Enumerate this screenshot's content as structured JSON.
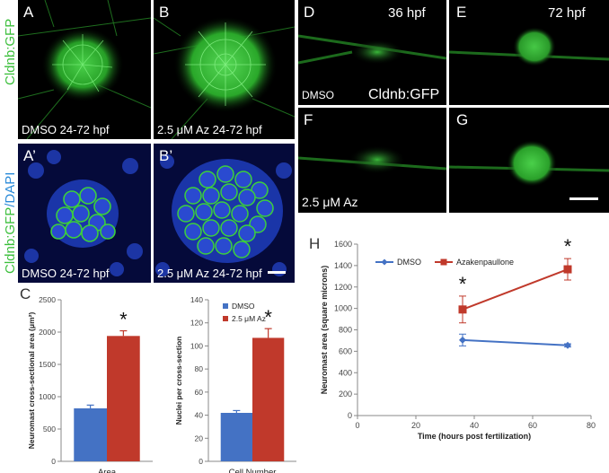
{
  "colors": {
    "gfp_green": "#3cbf3c",
    "dapi_blue": "#2a45c8",
    "dmso_blue": "#4472c4",
    "az_red": "#c0392b",
    "axis_grey": "#888888"
  },
  "micrographs": {
    "A": {
      "letter": "A",
      "caption": "DMSO 24-72 hpf"
    },
    "B": {
      "letter": "B",
      "caption": "2.5 μM Az 24-72 hpf"
    },
    "A2": {
      "letter": "A’",
      "caption": "DMSO 24-72 hpf"
    },
    "B2": {
      "letter": "B’",
      "caption": "2.5 μM Az 24-72 hpf"
    },
    "D": {
      "letter": "D",
      "time": "36  hpf",
      "caption": "DMSO",
      "marker": "Cldnb:GFP"
    },
    "E": {
      "letter": "E",
      "time": "72 hpf"
    },
    "F": {
      "letter": "F",
      "caption": "2.5 μM Az"
    },
    "G": {
      "letter": "G"
    },
    "side_top": "Cldnb:GFP",
    "side_bottom_green": "Cldnb:GFP",
    "side_bottom_blue": "/DAPI"
  },
  "chart_data": [
    {
      "panel": "C",
      "type": "bar",
      "categories": [
        "Area"
      ],
      "series": [
        {
          "name": "DMSO",
          "values": [
            820
          ],
          "error": [
            50
          ]
        },
        {
          "name": "2.5 μM Az",
          "values": [
            1940
          ],
          "error": [
            80
          ]
        }
      ],
      "xlabel": "Area",
      "ylabel": "Neuromast cross-sectional area (μm²)",
      "ylim": [
        0,
        2500
      ],
      "yticks": [
        0,
        500,
        1000,
        1500,
        2000,
        2500
      ],
      "annotation": "*"
    },
    {
      "panel": "C2",
      "type": "bar",
      "categories": [
        "Cell Number"
      ],
      "series": [
        {
          "name": "DMSO",
          "values": [
            42
          ],
          "error": [
            2
          ]
        },
        {
          "name": "2.5 μM Az",
          "values": [
            107
          ],
          "error": [
            8
          ]
        }
      ],
      "xlabel": "Cell Number",
      "ylabel": "Nuclei per cross-section",
      "ylim": [
        0,
        140
      ],
      "yticks": [
        0,
        20,
        40,
        60,
        80,
        100,
        120,
        140
      ],
      "legend": [
        "DMSO",
        "2.5 μM Az"
      ],
      "legend_position": "top-right",
      "annotation": "*"
    },
    {
      "panel": "H",
      "type": "line",
      "series": [
        {
          "name": "DMSO",
          "x": [
            36,
            72
          ],
          "y": [
            705,
            655
          ],
          "error": [
            55,
            15
          ]
        },
        {
          "name": "Azakenpaullone",
          "x": [
            36,
            72
          ],
          "y": [
            990,
            1365
          ],
          "error": [
            125,
            100
          ]
        }
      ],
      "xlabel": "Time (hours post fertilization)",
      "ylabel": "Neuromast area (square microns)",
      "xlim": [
        0,
        80
      ],
      "ylim": [
        0,
        1600
      ],
      "xticks": [
        0,
        20,
        40,
        60,
        80
      ],
      "yticks": [
        0,
        200,
        400,
        600,
        800,
        1000,
        1200,
        1400,
        1600
      ],
      "legend_position": "top-left",
      "annotations": [
        "*",
        "*"
      ]
    }
  ],
  "panel_letters": {
    "C": "C",
    "H": "H"
  }
}
